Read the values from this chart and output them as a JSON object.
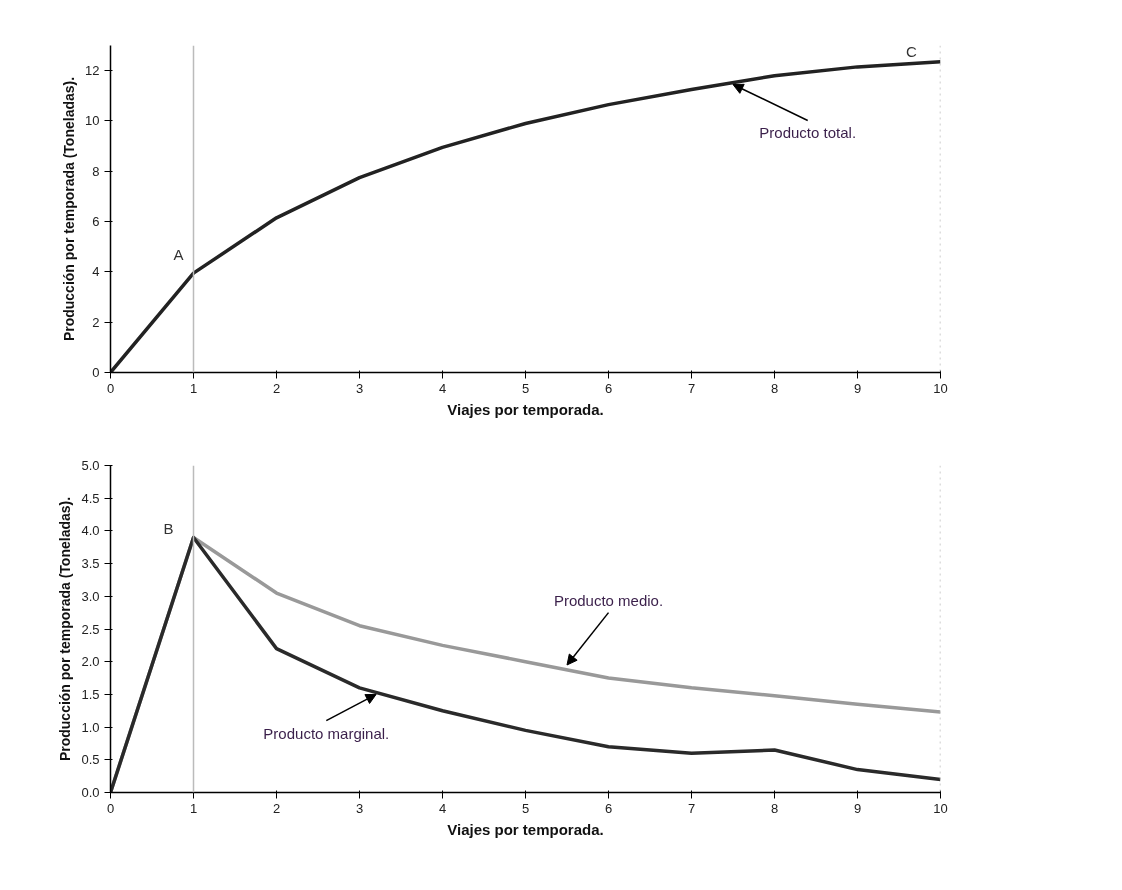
{
  "chart_data": [
    {
      "type": "line",
      "xlabel": "Viajes por temporada.",
      "ylabel": "Producción por temporada (Toneladas).",
      "x": [
        0,
        1,
        2,
        3,
        4,
        5,
        6,
        7,
        8,
        9,
        10
      ],
      "series": [
        {
          "color": "#222222",
          "values": [
            0,
            3.95,
            6.15,
            7.75,
            8.95,
            9.9,
            10.65,
            11.25,
            11.8,
            12.15,
            12.35
          ]
        }
      ],
      "xlim": [
        0,
        10
      ],
      "xticks": [
        0,
        1,
        2,
        3,
        4,
        5,
        6,
        7,
        8,
        9,
        10
      ],
      "ylim": [
        0,
        13
      ],
      "yticks": [
        0,
        2,
        4,
        6,
        8,
        10,
        12
      ],
      "grid": false,
      "marker": "none",
      "line_style": "solid",
      "ref_lines": [
        {
          "axis": "x",
          "value": 1,
          "color": "#bbbbbb",
          "line_style": "solid"
        },
        {
          "axis": "x",
          "value": 10,
          "color": "#bbbbbb",
          "line_style": "dotted"
        }
      ],
      "annotations": [
        {
          "text": "A",
          "x": 1,
          "y": 3.95
        },
        {
          "text": "C",
          "x": 10,
          "y": 12.35
        },
        {
          "text": "Producto total.",
          "x": 7.5,
          "y": 11.45
        }
      ]
    },
    {
      "type": "line",
      "xlabel": "Viajes por temporada.",
      "ylabel": "Producción por temporada (Toneladas).",
      "x": [
        0,
        1,
        2,
        3,
        4,
        5,
        6,
        7,
        8,
        9,
        10
      ],
      "series": [
        {
          "color": "#999999",
          "values": [
            0,
            3.9,
            3.05,
            2.55,
            2.25,
            2.0,
            1.75,
            1.6,
            1.48,
            1.35,
            1.23
          ]
        },
        {
          "color": "#2a2a2a",
          "values": [
            0,
            3.9,
            2.2,
            1.6,
            1.25,
            0.95,
            0.7,
            0.6,
            0.65,
            0.35,
            0.2
          ]
        }
      ],
      "xlim": [
        0,
        10
      ],
      "xticks": [
        0,
        1,
        2,
        3,
        4,
        5,
        6,
        7,
        8,
        9,
        10
      ],
      "ylim": [
        0,
        5
      ],
      "yticks": [
        {
          "value": 0,
          "label": "0.0"
        },
        0.5,
        {
          "value": 1,
          "label": "1.0"
        },
        1.5,
        {
          "value": 2,
          "label": "2.0"
        },
        2.5,
        {
          "value": 3,
          "label": "3.0"
        },
        3.5,
        {
          "value": 4,
          "label": "4.0"
        },
        4.5,
        {
          "value": 5,
          "label": "5.0"
        }
      ],
      "grid": false,
      "marker": "none",
      "line_style": "solid",
      "ref_lines": [
        {
          "axis": "x",
          "value": 1,
          "color": "#bbbbbb",
          "line_style": "solid"
        },
        {
          "axis": "x",
          "value": 10,
          "color": "#bbbbbb",
          "line_style": "dotted"
        }
      ],
      "annotations": [
        {
          "text": "B",
          "x": 1,
          "y": 3.9
        },
        {
          "text": "Producto medio.",
          "x": 5.5,
          "y": 1.95
        },
        {
          "text": "Producto marginal.",
          "x": 3.2,
          "y": 1.5
        }
      ]
    }
  ]
}
